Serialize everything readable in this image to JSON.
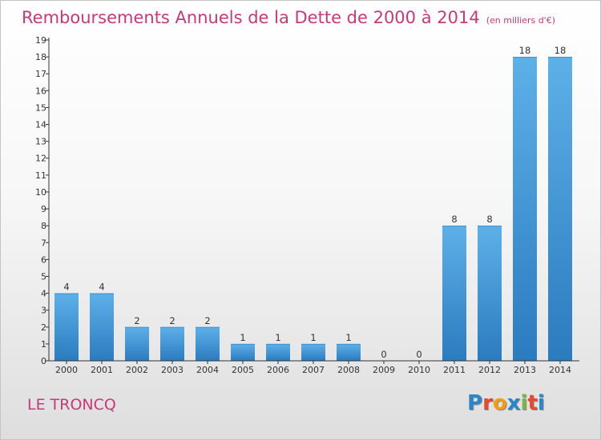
{
  "title": "Remboursements Annuels de la Dette de 2000 à 2014",
  "subtitle": "(en milliers d'€)",
  "commune": "LE TRONCQ",
  "logo": {
    "text": "Proxiti",
    "colors": [
      "#2a86c8",
      "#e8492e",
      "#f39c12",
      "#2a86c8",
      "#7ab648",
      "#e8492e",
      "#2a86c8"
    ]
  },
  "colors": {
    "accent": "#c8387a",
    "bar_top": "#5eb0e8",
    "bar_bottom": "#2b7bbf"
  },
  "chart_data": {
    "type": "bar",
    "categories": [
      "2000",
      "2001",
      "2002",
      "2003",
      "2004",
      "2005",
      "2006",
      "2007",
      "2008",
      "2009",
      "2010",
      "2011",
      "2012",
      "2013",
      "2014"
    ],
    "values": [
      4,
      4,
      2,
      2,
      2,
      1,
      1,
      1,
      1,
      0,
      0,
      8,
      8,
      18,
      18
    ],
    "data_labels": [
      "4",
      "4",
      "2",
      "2",
      "2",
      "1",
      "1",
      "1",
      "1",
      "0",
      "0",
      "8",
      "8",
      "18",
      "18"
    ],
    "y_ticks": [
      "0",
      "1",
      "2",
      "3",
      "4",
      "5",
      "6",
      "7",
      "8",
      "9",
      "10",
      "11",
      "12",
      "13",
      "14",
      "15",
      "16",
      "17",
      "18",
      "19"
    ],
    "ylim": [
      0,
      19
    ],
    "xlabel": "",
    "ylabel": "",
    "grid": false,
    "legend": "none"
  }
}
